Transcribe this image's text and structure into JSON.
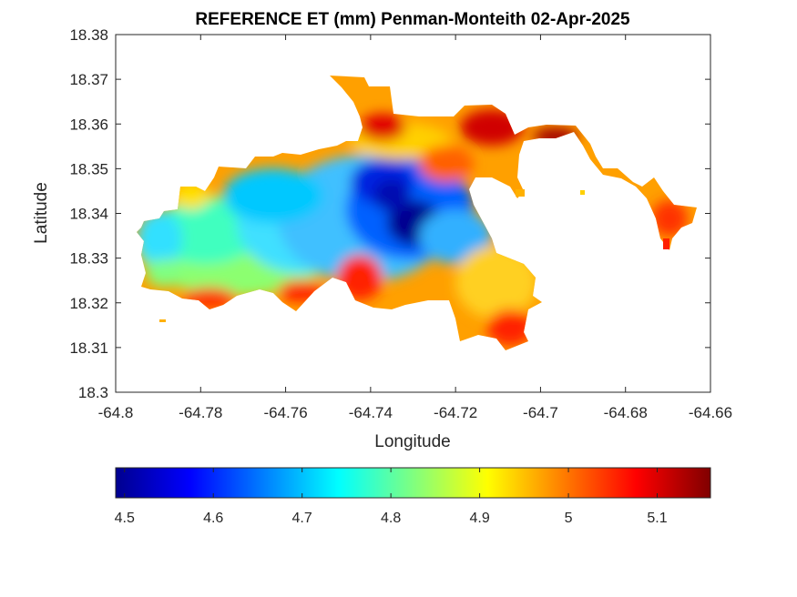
{
  "chart_data": {
    "type": "heatmap",
    "title": "REFERENCE ET (mm) Penman-Monteith 02-Apr-2025",
    "xlabel": "Longitude",
    "ylabel": "Latitude",
    "xlim": [
      -64.8,
      -64.66
    ],
    "ylim": [
      18.3,
      18.38
    ],
    "xticks": [
      "-64.8",
      "-64.78",
      "-64.76",
      "-64.74",
      "-64.72",
      "-64.7",
      "-64.68",
      "-64.66"
    ],
    "yticks": [
      "18.3",
      "18.31",
      "18.32",
      "18.33",
      "18.34",
      "18.35",
      "18.36",
      "18.37",
      "18.38"
    ],
    "colormap": "jet",
    "clim": [
      4.49,
      5.16
    ],
    "colorbar_ticks": [
      "4.5",
      "4.6",
      "4.7",
      "4.8",
      "4.9",
      "5",
      "5.1"
    ],
    "colorbar_location": "southoutside"
  }
}
